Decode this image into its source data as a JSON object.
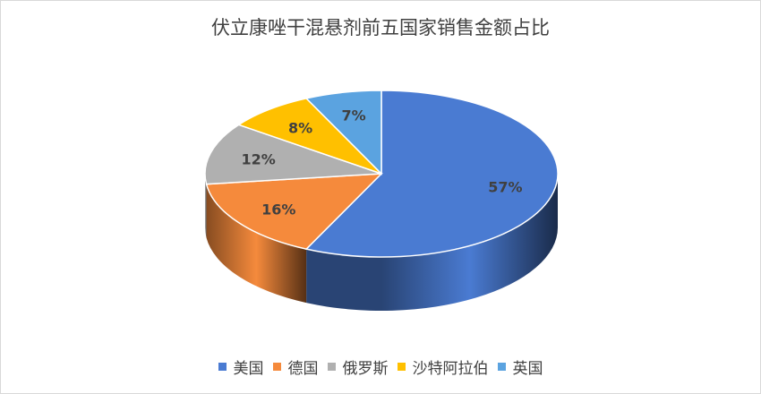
{
  "chart_data": {
    "type": "pie",
    "style": "3d",
    "title": "伏立康唑干混悬剂前五国家销售金额占比",
    "categories": [
      "美国",
      "德国",
      "俄罗斯",
      "沙特阿拉伯",
      "英国"
    ],
    "values": [
      57,
      16,
      12,
      8,
      7
    ],
    "labels": [
      "57%",
      "16%",
      "12%",
      "8%",
      "7%"
    ],
    "colors": [
      "#4a7bd2",
      "#f58a3c",
      "#b0b0b0",
      "#ffc000",
      "#5ba3e0"
    ],
    "legend_position": "bottom"
  }
}
